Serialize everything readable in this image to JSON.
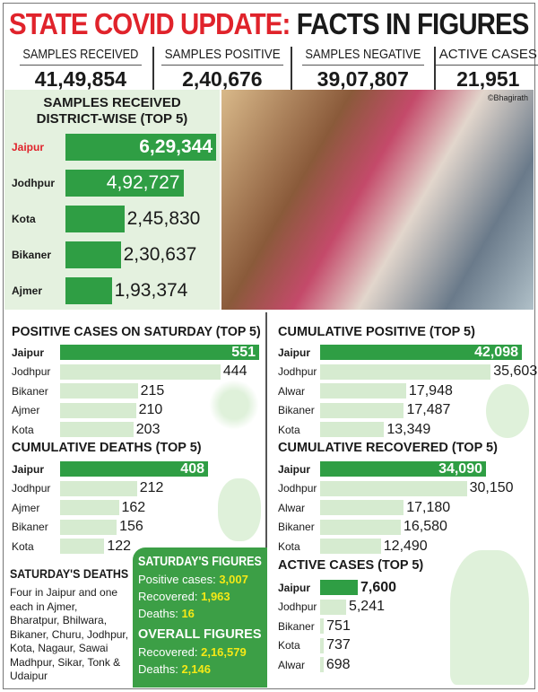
{
  "header": {
    "title_red": "STATE COVID UPDATE:",
    "title_black": "FACTS IN FIGURES",
    "stats": [
      {
        "label": "SAMPLES RECEIVED",
        "value": "41,49,854"
      },
      {
        "label": "SAMPLES POSITIVE",
        "value": "2,40,676"
      },
      {
        "label": "SAMPLES NEGATIVE",
        "value": "39,07,807"
      },
      {
        "label": "ACTIVE CASES",
        "value": "21,951"
      }
    ]
  },
  "photo": {
    "credit": "©Bhagirath"
  },
  "colors": {
    "dark_green": "#2f9e44",
    "light_green": "#d6ebd0",
    "red": "#e0232b",
    "yellow": "#f4e817"
  },
  "chart_data": [
    {
      "type": "bar",
      "orientation": "horizontal",
      "title": "SAMPLES RECEIVED DISTRICT-WISE (TOP 5)",
      "categories": [
        "Jaipur",
        "Jodhpur",
        "Kota",
        "Bikaner",
        "Ajmer"
      ],
      "values": [
        629344,
        492727,
        245830,
        230637,
        193374
      ],
      "labels": [
        "6,29,344",
        "4,92,727",
        "2,45,830",
        "2,30,637",
        "1,93,374"
      ]
    },
    {
      "type": "bar",
      "orientation": "horizontal",
      "title": "POSITIVE CASES ON SATURDAY (TOP 5)",
      "categories": [
        "Jaipur",
        "Jodhpur",
        "Bikaner",
        "Ajmer",
        "Kota"
      ],
      "values": [
        551,
        444,
        215,
        210,
        203
      ],
      "labels": [
        "551",
        "444",
        "215",
        "210",
        "203"
      ]
    },
    {
      "type": "bar",
      "orientation": "horizontal",
      "title": "CUMULATIVE DEATHS (TOP 5)",
      "categories": [
        "Jaipur",
        "Jodhpur",
        "Ajmer",
        "Bikaner",
        "Kota"
      ],
      "values": [
        408,
        212,
        162,
        156,
        122
      ],
      "labels": [
        "408",
        "212",
        "162",
        "156",
        "122"
      ]
    },
    {
      "type": "bar",
      "orientation": "horizontal",
      "title": "CUMULATIVE POSITIVE (TOP 5)",
      "categories": [
        "Jaipur",
        "Jodhpur",
        "Alwar",
        "Bikaner",
        "Kota"
      ],
      "values": [
        42098,
        35603,
        17948,
        17487,
        13349
      ],
      "labels": [
        "42,098",
        "35,603",
        "17,948",
        "17,487",
        "13,349"
      ]
    },
    {
      "type": "bar",
      "orientation": "horizontal",
      "title": "CUMULATIVE RECOVERED (TOP 5)",
      "categories": [
        "Jaipur",
        "Jodhpur",
        "Alwar",
        "Bikaner",
        "Kota"
      ],
      "values": [
        34090,
        30150,
        17180,
        16580,
        12490
      ],
      "labels": [
        "34,090",
        "30,150",
        "17,180",
        "16,580",
        "12,490"
      ]
    },
    {
      "type": "bar",
      "orientation": "horizontal",
      "title": "ACTIVE CASES (TOP 5)",
      "categories": [
        "Jaipur",
        "Jodhpur",
        "Bikaner",
        "Kota",
        "Alwar"
      ],
      "values": [
        7600,
        5241,
        751,
        737,
        698
      ],
      "labels": [
        "7,600",
        "5,241",
        "751",
        "737",
        "698"
      ]
    }
  ],
  "saturday_deaths": {
    "title": "SATURDAY'S DEATHS",
    "text": "Four in Jaipur and one each in Ajmer, Bharatpur, Bhilwara, Bikaner, Churu, Jodhpur, Kota, Nagaur, Sawai Madhpur, Sikar, Tonk & Udaipur"
  },
  "figures": {
    "sat_title": "SATURDAY'S FIGURES",
    "positive_label": "Positive cases:",
    "positive": "3,007",
    "recovered_label": "Recovered:",
    "recovered": "1,963",
    "deaths_label": "Deaths:",
    "deaths": "16",
    "overall_title": "OVERALL FIGURES",
    "overall_recovered_label": "Recovered:",
    "overall_recovered": "2,16,579",
    "overall_deaths_label": "Deaths:",
    "overall_deaths": "2,146"
  }
}
